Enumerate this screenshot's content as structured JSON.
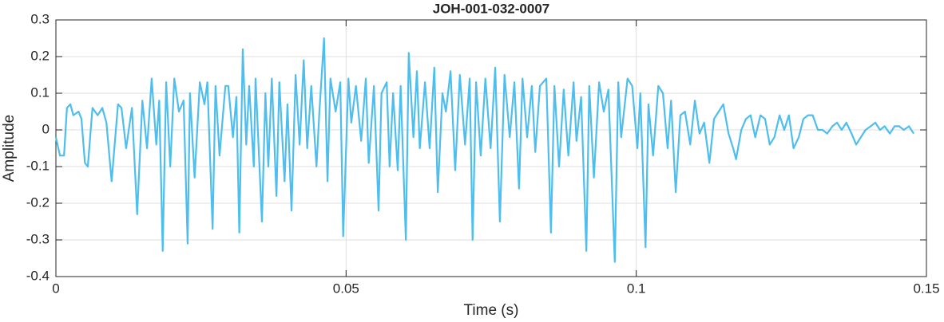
{
  "chart_data": {
    "type": "line",
    "title": "JOH-001-032-0007",
    "x_label": "Time (s)",
    "y_label": "Amplitude",
    "color": "#4dbeee",
    "grid": true,
    "xlim": [
      0,
      0.15
    ],
    "xticks": [
      0,
      0.05,
      0.1,
      0.15
    ],
    "ylim": [
      -0.4,
      0.3
    ],
    "yticks": [
      -0.4,
      -0.3,
      -0.2,
      -0.1,
      0,
      0.1,
      0.2,
      0.3
    ],
    "x": [
      0,
      0.0007,
      0.0014,
      0.0019,
      0.0025,
      0.003,
      0.0039,
      0.0044,
      0.005,
      0.0055,
      0.0063,
      0.0072,
      0.008,
      0.0087,
      0.0096,
      0.0107,
      0.0113,
      0.0121,
      0.0131,
      0.014,
      0.0149,
      0.0157,
      0.0165,
      0.0173,
      0.0178,
      0.0184,
      0.019,
      0.0197,
      0.0204,
      0.0212,
      0.022,
      0.0227,
      0.0231,
      0.0239,
      0.0248,
      0.0256,
      0.0261,
      0.027,
      0.0275,
      0.0282,
      0.0292,
      0.0297,
      0.0305,
      0.0311,
      0.0316,
      0.0322,
      0.0328,
      0.0333,
      0.0341,
      0.0344,
      0.0355,
      0.0361,
      0.0366,
      0.0372,
      0.038,
      0.0385,
      0.0394,
      0.0399,
      0.0406,
      0.0413,
      0.042,
      0.0427,
      0.0433,
      0.044,
      0.0449,
      0.0454,
      0.0462,
      0.0468,
      0.0473,
      0.0482,
      0.049,
      0.0495,
      0.0504,
      0.0509,
      0.0517,
      0.0526,
      0.0534,
      0.0539,
      0.0548,
      0.0556,
      0.0561,
      0.057,
      0.0575,
      0.0581,
      0.0589,
      0.0594,
      0.0603,
      0.0608,
      0.0616,
      0.0622,
      0.0627,
      0.0636,
      0.0644,
      0.0652,
      0.0658,
      0.0666,
      0.0672,
      0.068,
      0.0688,
      0.0696,
      0.0705,
      0.0713,
      0.0718,
      0.0724,
      0.0732,
      0.074,
      0.0749,
      0.0757,
      0.0765,
      0.0773,
      0.0782,
      0.079,
      0.0798,
      0.0804,
      0.0812,
      0.082,
      0.0826,
      0.0834,
      0.0845,
      0.0853,
      0.0859,
      0.0867,
      0.0875,
      0.0883,
      0.0892,
      0.0897,
      0.0905,
      0.0914,
      0.0919,
      0.0927,
      0.0936,
      0.0944,
      0.0952,
      0.0963,
      0.0969,
      0.0974,
      0.0985,
      0.0993,
      0.1002,
      0.1007,
      0.1016,
      0.1021,
      0.1029,
      0.1038,
      0.1046,
      0.1054,
      0.106,
      0.1068,
      0.1076,
      0.1084,
      0.1093,
      0.1101,
      0.1109,
      0.1117,
      0.1126,
      0.1134,
      0.1142,
      0.115,
      0.1159,
      0.1167,
      0.1172,
      0.1181,
      0.1189,
      0.1197,
      0.1205,
      0.1214,
      0.1222,
      0.123,
      0.1238,
      0.1247,
      0.1255,
      0.1263,
      0.1271,
      0.128,
      0.1288,
      0.1296,
      0.1304,
      0.1313,
      0.1321,
      0.1329,
      0.1338,
      0.1346,
      0.1354,
      0.1362,
      0.1371,
      0.1379,
      0.1387,
      0.1395,
      0.1404,
      0.1412,
      0.142,
      0.1428,
      0.1437,
      0.1445,
      0.1453,
      0.1461,
      0.147,
      0.1478
    ],
    "values": [
      -0.02,
      -0.07,
      -0.07,
      0.06,
      0.07,
      0.04,
      0.05,
      0.03,
      -0.09,
      -0.1,
      0.06,
      0.04,
      0.06,
      0.02,
      -0.14,
      0.07,
      0.06,
      -0.05,
      0.06,
      -0.23,
      0.08,
      -0.05,
      0.14,
      -0.04,
      0.08,
      -0.33,
      0.13,
      -0.1,
      0.14,
      0.05,
      0.08,
      -0.31,
      0.1,
      -0.13,
      0.13,
      0.07,
      0.13,
      -0.27,
      0.12,
      -0.07,
      0.12,
      0.12,
      -0.02,
      0.09,
      -0.28,
      0.22,
      -0.04,
      0.12,
      -0.1,
      0.14,
      -0.25,
      0.1,
      -0.1,
      0.14,
      -0.18,
      0.13,
      -0.14,
      0.07,
      -0.22,
      0.15,
      -0.04,
      0.19,
      -0.05,
      0.12,
      -0.1,
      0.05,
      0.25,
      -0.14,
      0.14,
      0.05,
      0.13,
      -0.29,
      0.14,
      0.02,
      0.12,
      -0.03,
      0.14,
      -0.09,
      0.12,
      -0.22,
      0.1,
      0.13,
      -0.1,
      0.1,
      -0.11,
      0.12,
      -0.3,
      0.21,
      -0.02,
      0.16,
      -0.05,
      0.13,
      -0.05,
      0.17,
      -0.17,
      0.1,
      0.05,
      0.16,
      -0.11,
      0.15,
      -0.04,
      0.14,
      -0.3,
      0.13,
      -0.07,
      0.14,
      -0.05,
      0.17,
      -0.25,
      0.15,
      -0.02,
      0.13,
      -0.16,
      0.14,
      -0.02,
      0.12,
      -0.06,
      0.12,
      0.14,
      -0.28,
      0.12,
      -0.1,
      0.11,
      -0.07,
      0.13,
      -0.03,
      0.09,
      -0.33,
      0.12,
      -0.13,
      0.13,
      0.05,
      0.11,
      -0.36,
      0.13,
      -0.02,
      0.14,
      0.12,
      -0.05,
      0.1,
      -0.32,
      0.07,
      -0.07,
      0.12,
      0.1,
      -0.05,
      0.08,
      -0.17,
      0.04,
      0.05,
      -0.04,
      0.08,
      -0.01,
      0.02,
      -0.09,
      0.03,
      0.05,
      0.07,
      -0.01,
      -0.05,
      -0.08,
      0,
      0.03,
      0.04,
      -0.02,
      0.04,
      0.03,
      -0.04,
      -0.02,
      0.04,
      0,
      0.04,
      -0.05,
      -0.02,
      0.03,
      0.04,
      0.04,
      0,
      0,
      -0.01,
      0.01,
      0.02,
      0,
      0.02,
      -0.01,
      -0.04,
      -0.02,
      0,
      0.01,
      0.02,
      0,
      0.01,
      -0.01,
      0.01,
      0.01,
      0,
      0.01,
      -0.01
    ]
  }
}
